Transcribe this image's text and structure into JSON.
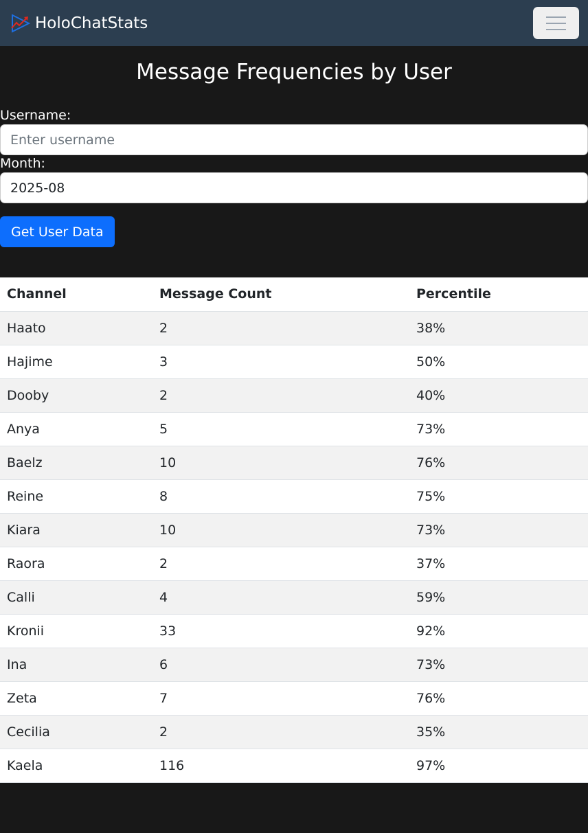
{
  "nav": {
    "brand": "HoloChatStats"
  },
  "page": {
    "title": "Message Frequencies by User"
  },
  "form": {
    "username_label": "Username:",
    "username_placeholder": "Enter username",
    "username_value": "",
    "month_label": "Month:",
    "month_value": "2025-08",
    "submit_label": "Get User Data"
  },
  "table": {
    "headers": [
      "Channel",
      "Message Count",
      "Percentile"
    ],
    "rows": [
      [
        "Haato",
        "2",
        "38%"
      ],
      [
        "Hajime",
        "3",
        "50%"
      ],
      [
        "Dooby",
        "2",
        "40%"
      ],
      [
        "Anya",
        "5",
        "73%"
      ],
      [
        "Baelz",
        "10",
        "76%"
      ],
      [
        "Reine",
        "8",
        "75%"
      ],
      [
        "Kiara",
        "10",
        "73%"
      ],
      [
        "Raora",
        "2",
        "37%"
      ],
      [
        "Calli",
        "4",
        "59%"
      ],
      [
        "Kronii",
        "33",
        "92%"
      ],
      [
        "Ina",
        "6",
        "73%"
      ],
      [
        "Zeta",
        "7",
        "76%"
      ],
      [
        "Cecilia",
        "2",
        "35%"
      ],
      [
        "Kaela",
        "116",
        "97%"
      ]
    ]
  }
}
